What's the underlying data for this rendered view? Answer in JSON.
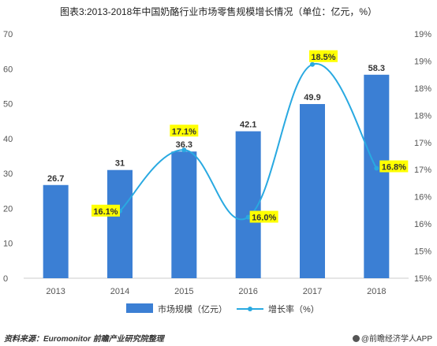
{
  "title": "图表3:2013-2018年中国奶酪行业市场零售规模增长情况（单位：亿元，%）",
  "chart_data": {
    "type": "bar+line",
    "categories": [
      "2013",
      "2014",
      "2015",
      "2016",
      "2017",
      "2018"
    ],
    "series": [
      {
        "name": "市场规模（亿元）",
        "type": "bar",
        "axis": "left",
        "color": "#3b7fd4",
        "values": [
          26.7,
          31,
          36.3,
          42.1,
          49.9,
          58.3
        ],
        "labels": [
          "26.7",
          "31",
          "36.3",
          "42.1",
          "49.9",
          "58.3"
        ]
      },
      {
        "name": "增长率（%）",
        "type": "line",
        "axis": "right",
        "color": "#29a9e1",
        "values": [
          null,
          16.1,
          17.1,
          16.0,
          18.5,
          16.8
        ],
        "labels": [
          "",
          "16.1%",
          "17.1%",
          "16.0%",
          "18.5%",
          "16.8%"
        ]
      }
    ],
    "left_axis": {
      "ylim": [
        0,
        70
      ],
      "ticks": [
        "0",
        "10",
        "20",
        "30",
        "40",
        "50",
        "60",
        "70"
      ]
    },
    "right_axis": {
      "ylim": [
        15,
        19
      ],
      "ticks": [
        "15%",
        "15%",
        "16%",
        "16%",
        "17%",
        "17%",
        "18%",
        "18%",
        "19%",
        "19%"
      ]
    },
    "legend_position": "bottom",
    "label_highlight_color": "#ffff00"
  },
  "footer": {
    "source": "资料来源：Euromonitor 前瞻产业研究院整理",
    "brand": "@前瞻经济学人APP"
  }
}
